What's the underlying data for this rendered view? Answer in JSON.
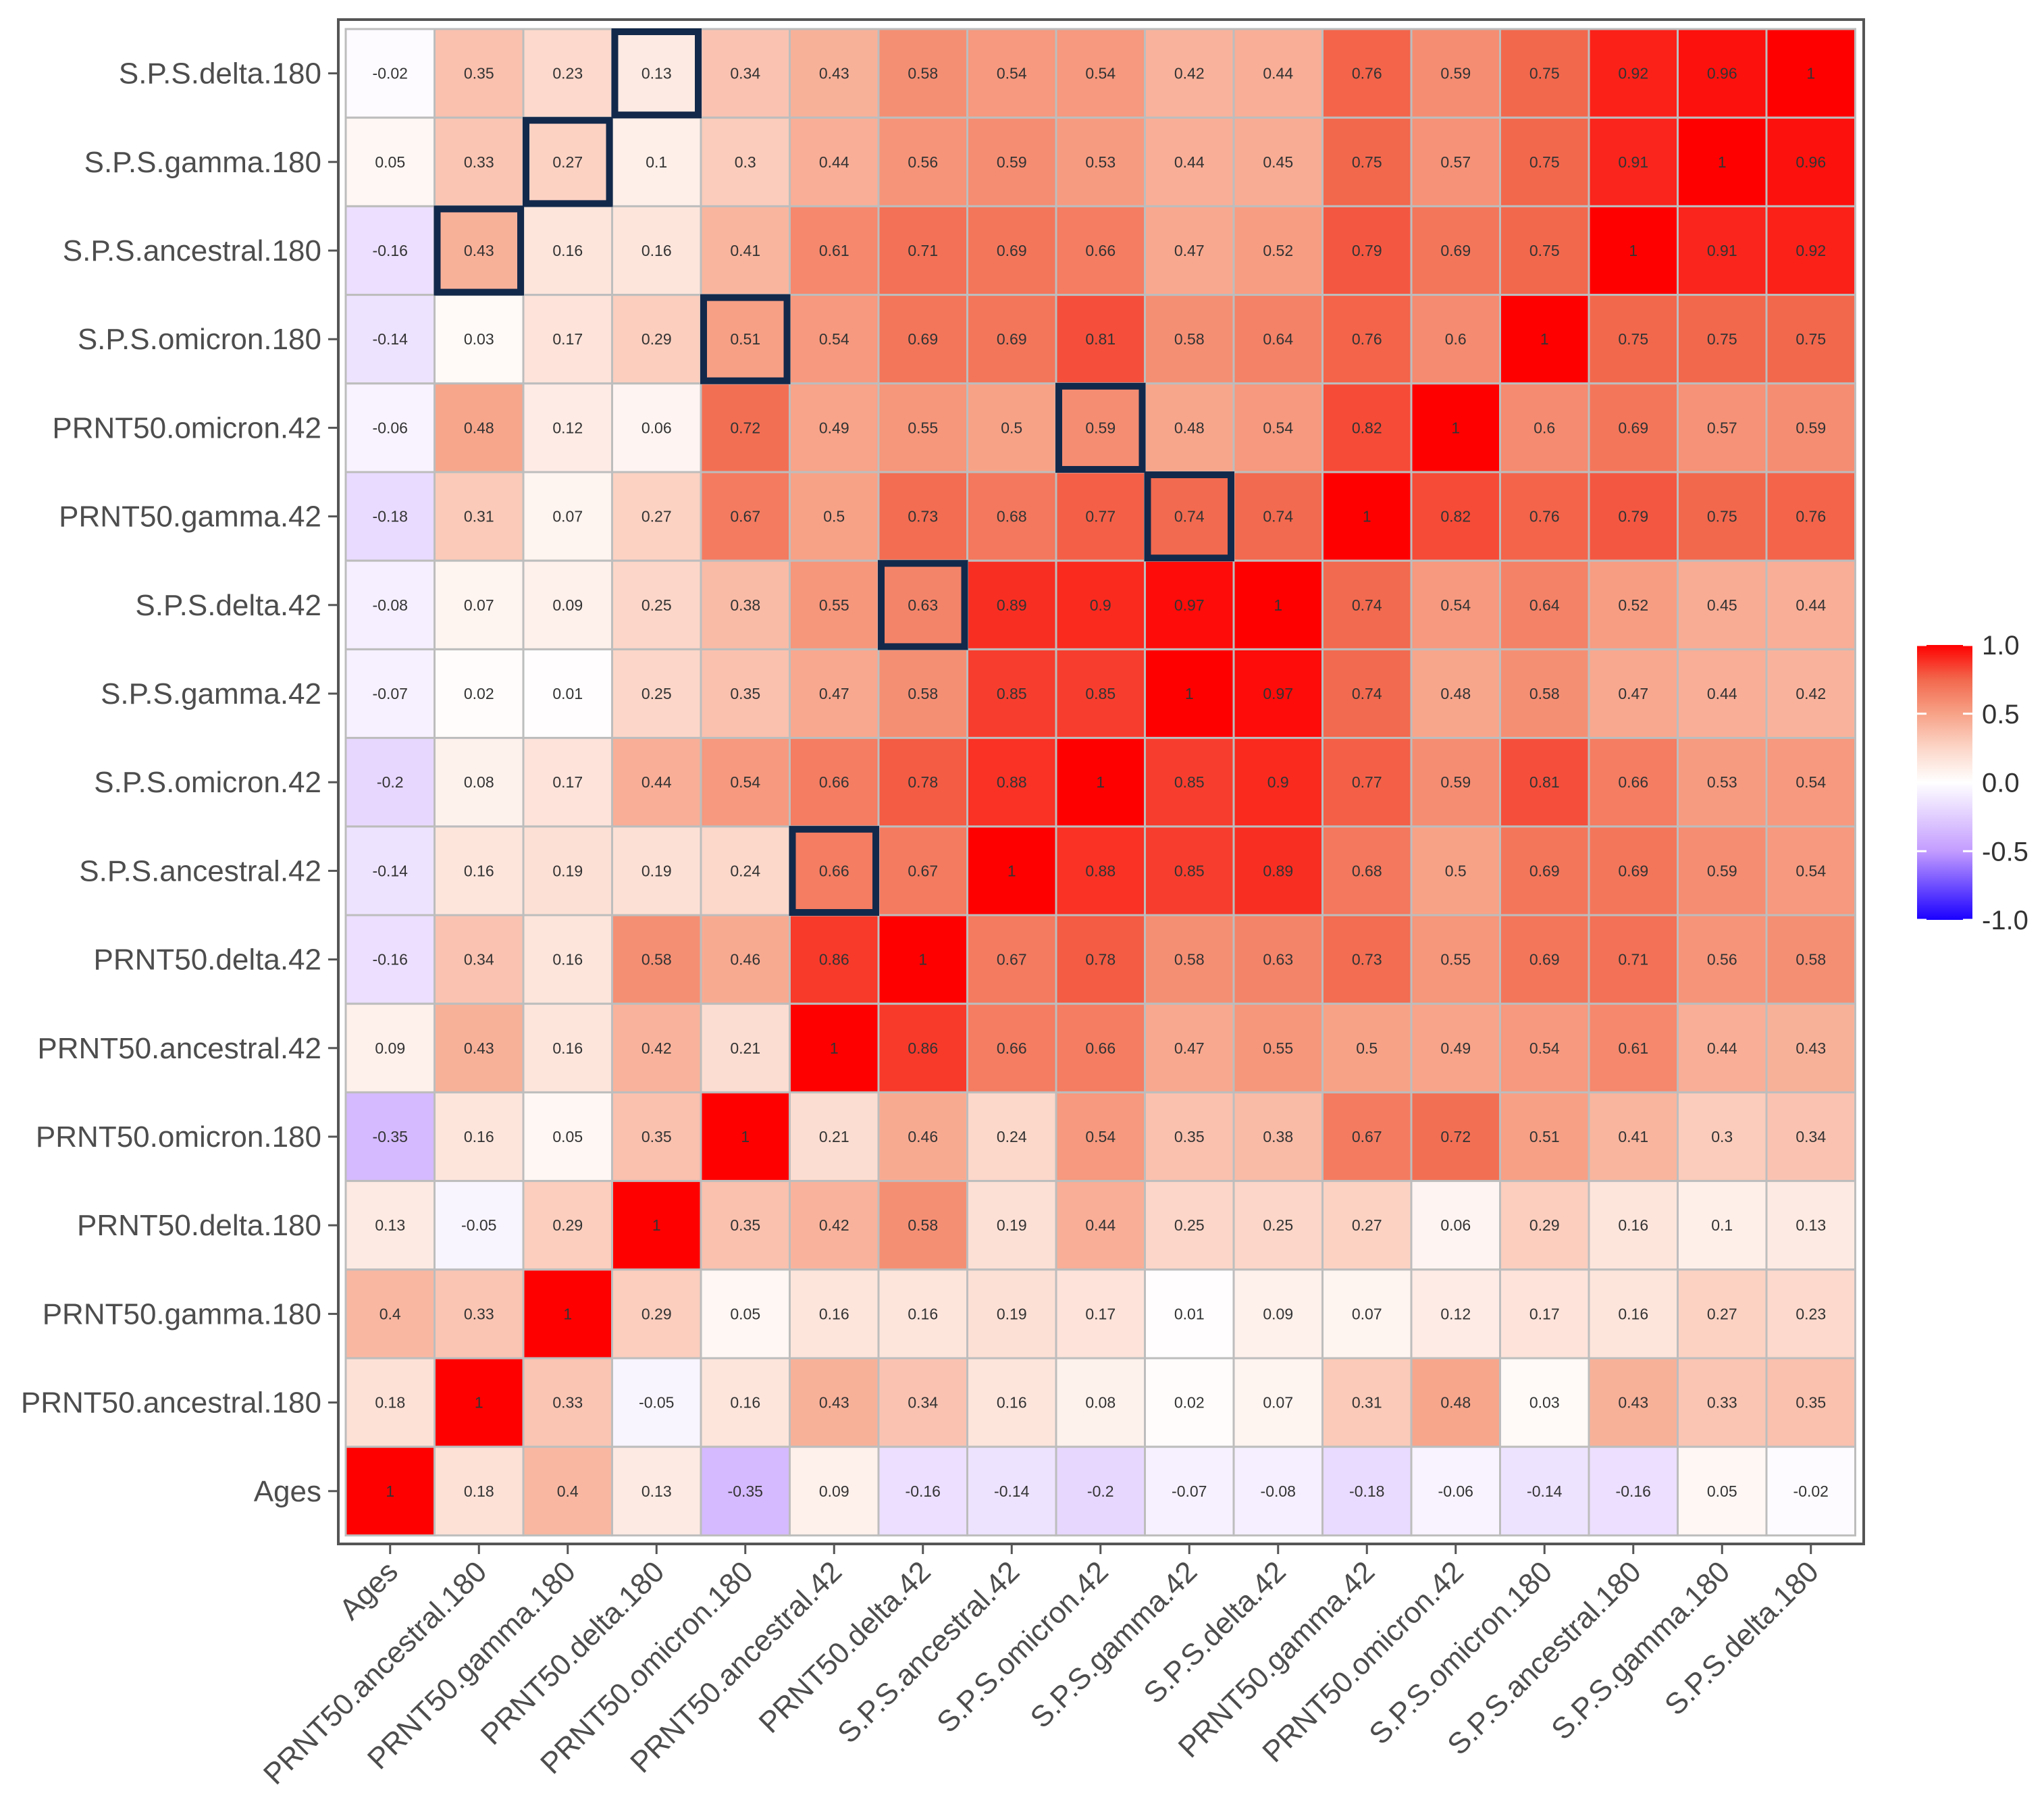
{
  "chart_data": {
    "type": "heatmap",
    "title": "",
    "xlabel": "",
    "ylabel": "",
    "x_labels": [
      "Ages",
      "PRNT50.ancestral.180",
      "PRNT50.gamma.180",
      "PRNT50.delta.180",
      "PRNT50.omicron.180",
      "PRNT50.ancestral.42",
      "PRNT50.delta.42",
      "S.P.S.ancestral.42",
      "S.P.S.omicron.42",
      "S.P.S.gamma.42",
      "S.P.S.delta.42",
      "PRNT50.gamma.42",
      "PRNT50.omicron.42",
      "S.P.S.omicron.180",
      "S.P.S.ancestral.180",
      "S.P.S.gamma.180",
      "S.P.S.delta.180"
    ],
    "y_labels_top_to_bottom": [
      "S.P.S.delta.180",
      "S.P.S.gamma.180",
      "S.P.S.ancestral.180",
      "S.P.S.omicron.180",
      "PRNT50.omicron.42",
      "PRNT50.gamma.42",
      "S.P.S.delta.42",
      "S.P.S.gamma.42",
      "S.P.S.omicron.42",
      "S.P.S.ancestral.42",
      "PRNT50.delta.42",
      "PRNT50.ancestral.42",
      "PRNT50.omicron.180",
      "PRNT50.delta.180",
      "PRNT50.gamma.180",
      "PRNT50.ancestral.180",
      "Ages"
    ],
    "values": [
      [
        -0.02,
        0.35,
        0.23,
        0.13,
        0.34,
        0.43,
        0.58,
        0.54,
        0.54,
        0.42,
        0.44,
        0.76,
        0.59,
        0.75,
        0.92,
        0.96,
        1
      ],
      [
        0.05,
        0.33,
        0.27,
        0.1,
        0.3,
        0.44,
        0.56,
        0.59,
        0.53,
        0.44,
        0.45,
        0.75,
        0.57,
        0.75,
        0.91,
        1,
        0.96
      ],
      [
        -0.16,
        0.43,
        0.16,
        0.16,
        0.41,
        0.61,
        0.71,
        0.69,
        0.66,
        0.47,
        0.52,
        0.79,
        0.69,
        0.75,
        1,
        0.91,
        0.92
      ],
      [
        -0.14,
        0.03,
        0.17,
        0.29,
        0.51,
        0.54,
        0.69,
        0.69,
        0.81,
        0.58,
        0.64,
        0.76,
        0.6,
        1,
        0.75,
        0.75,
        0.75
      ],
      [
        -0.06,
        0.48,
        0.12,
        0.06,
        0.72,
        0.49,
        0.55,
        0.5,
        0.59,
        0.48,
        0.54,
        0.82,
        1,
        0.6,
        0.69,
        0.57,
        0.59
      ],
      [
        -0.18,
        0.31,
        0.07,
        0.27,
        0.67,
        0.5,
        0.73,
        0.68,
        0.77,
        0.74,
        0.74,
        1,
        0.82,
        0.76,
        0.79,
        0.75,
        0.76
      ],
      [
        -0.08,
        0.07,
        0.09,
        0.25,
        0.38,
        0.55,
        0.63,
        0.89,
        0.9,
        0.97,
        1,
        0.74,
        0.54,
        0.64,
        0.52,
        0.45,
        0.44
      ],
      [
        -0.07,
        0.02,
        0.01,
        0.25,
        0.35,
        0.47,
        0.58,
        0.85,
        0.85,
        1,
        0.97,
        0.74,
        0.48,
        0.58,
        0.47,
        0.44,
        0.42
      ],
      [
        -0.2,
        0.08,
        0.17,
        0.44,
        0.54,
        0.66,
        0.78,
        0.88,
        1,
        0.85,
        0.9,
        0.77,
        0.59,
        0.81,
        0.66,
        0.53,
        0.54
      ],
      [
        -0.14,
        0.16,
        0.19,
        0.19,
        0.24,
        0.66,
        0.67,
        1,
        0.88,
        0.85,
        0.89,
        0.68,
        0.5,
        0.69,
        0.69,
        0.59,
        0.54
      ],
      [
        -0.16,
        0.34,
        0.16,
        0.58,
        0.46,
        0.86,
        1,
        0.67,
        0.78,
        0.58,
        0.63,
        0.73,
        0.55,
        0.69,
        0.71,
        0.56,
        0.58
      ],
      [
        0.09,
        0.43,
        0.16,
        0.42,
        0.21,
        1,
        0.86,
        0.66,
        0.66,
        0.47,
        0.55,
        0.5,
        0.49,
        0.54,
        0.61,
        0.44,
        0.43
      ],
      [
        -0.35,
        0.16,
        0.05,
        0.35,
        1,
        0.21,
        0.46,
        0.24,
        0.54,
        0.35,
        0.38,
        0.67,
        0.72,
        0.51,
        0.41,
        0.3,
        0.34
      ],
      [
        0.13,
        -0.05,
        0.29,
        1,
        0.35,
        0.42,
        0.58,
        0.19,
        0.44,
        0.25,
        0.25,
        0.27,
        0.06,
        0.29,
        0.16,
        0.1,
        0.13
      ],
      [
        0.4,
        0.33,
        1,
        0.29,
        0.05,
        0.16,
        0.16,
        0.19,
        0.17,
        0.01,
        0.09,
        0.07,
        0.12,
        0.17,
        0.16,
        0.27,
        0.23
      ],
      [
        0.18,
        1,
        0.33,
        -0.05,
        0.16,
        0.43,
        0.34,
        0.16,
        0.08,
        0.02,
        0.07,
        0.31,
        0.48,
        0.03,
        0.43,
        0.33,
        0.35
      ],
      [
        1,
        0.18,
        0.4,
        0.13,
        -0.35,
        0.09,
        -0.16,
        -0.14,
        -0.2,
        -0.07,
        -0.08,
        -0.18,
        -0.06,
        -0.14,
        -0.16,
        0.05,
        -0.02
      ]
    ],
    "highlighted_cells": [
      {
        "row": "S.P.S.delta.180",
        "col": "PRNT50.delta.180"
      },
      {
        "row": "S.P.S.gamma.180",
        "col": "PRNT50.gamma.180"
      },
      {
        "row": "S.P.S.ancestral.180",
        "col": "PRNT50.ancestral.180"
      },
      {
        "row": "S.P.S.omicron.180",
        "col": "PRNT50.omicron.180"
      },
      {
        "row": "PRNT50.omicron.42",
        "col": "S.P.S.omicron.42"
      },
      {
        "row": "PRNT50.gamma.42",
        "col": "S.P.S.gamma.42"
      },
      {
        "row": "S.P.S.delta.42",
        "col": "PRNT50.delta.42"
      },
      {
        "row": "S.P.S.ancestral.42",
        "col": "PRNT50.ancestral.42"
      }
    ],
    "color_scale": {
      "range": [
        -1,
        1
      ],
      "stops": [
        {
          "value": -1,
          "color": "#1a00ff"
        },
        {
          "value": -0.5,
          "color": "#c39cff"
        },
        {
          "value": 0,
          "color": "#ffffff"
        },
        {
          "value": 0.25,
          "color": "#fcd6c8"
        },
        {
          "value": 0.5,
          "color": "#f7a287"
        },
        {
          "value": 0.75,
          "color": "#f2684d"
        },
        {
          "value": 1,
          "color": "#ff0000"
        }
      ]
    },
    "legend": {
      "placement": "right",
      "tick_labels": [
        "1.0",
        "0.5",
        "0.0",
        "-0.5",
        "-1.0"
      ],
      "tick_values": [
        1,
        0.5,
        0,
        -0.5,
        -1
      ]
    },
    "highlight_color": "#13294b",
    "grid_color": "#bdbdbd"
  }
}
